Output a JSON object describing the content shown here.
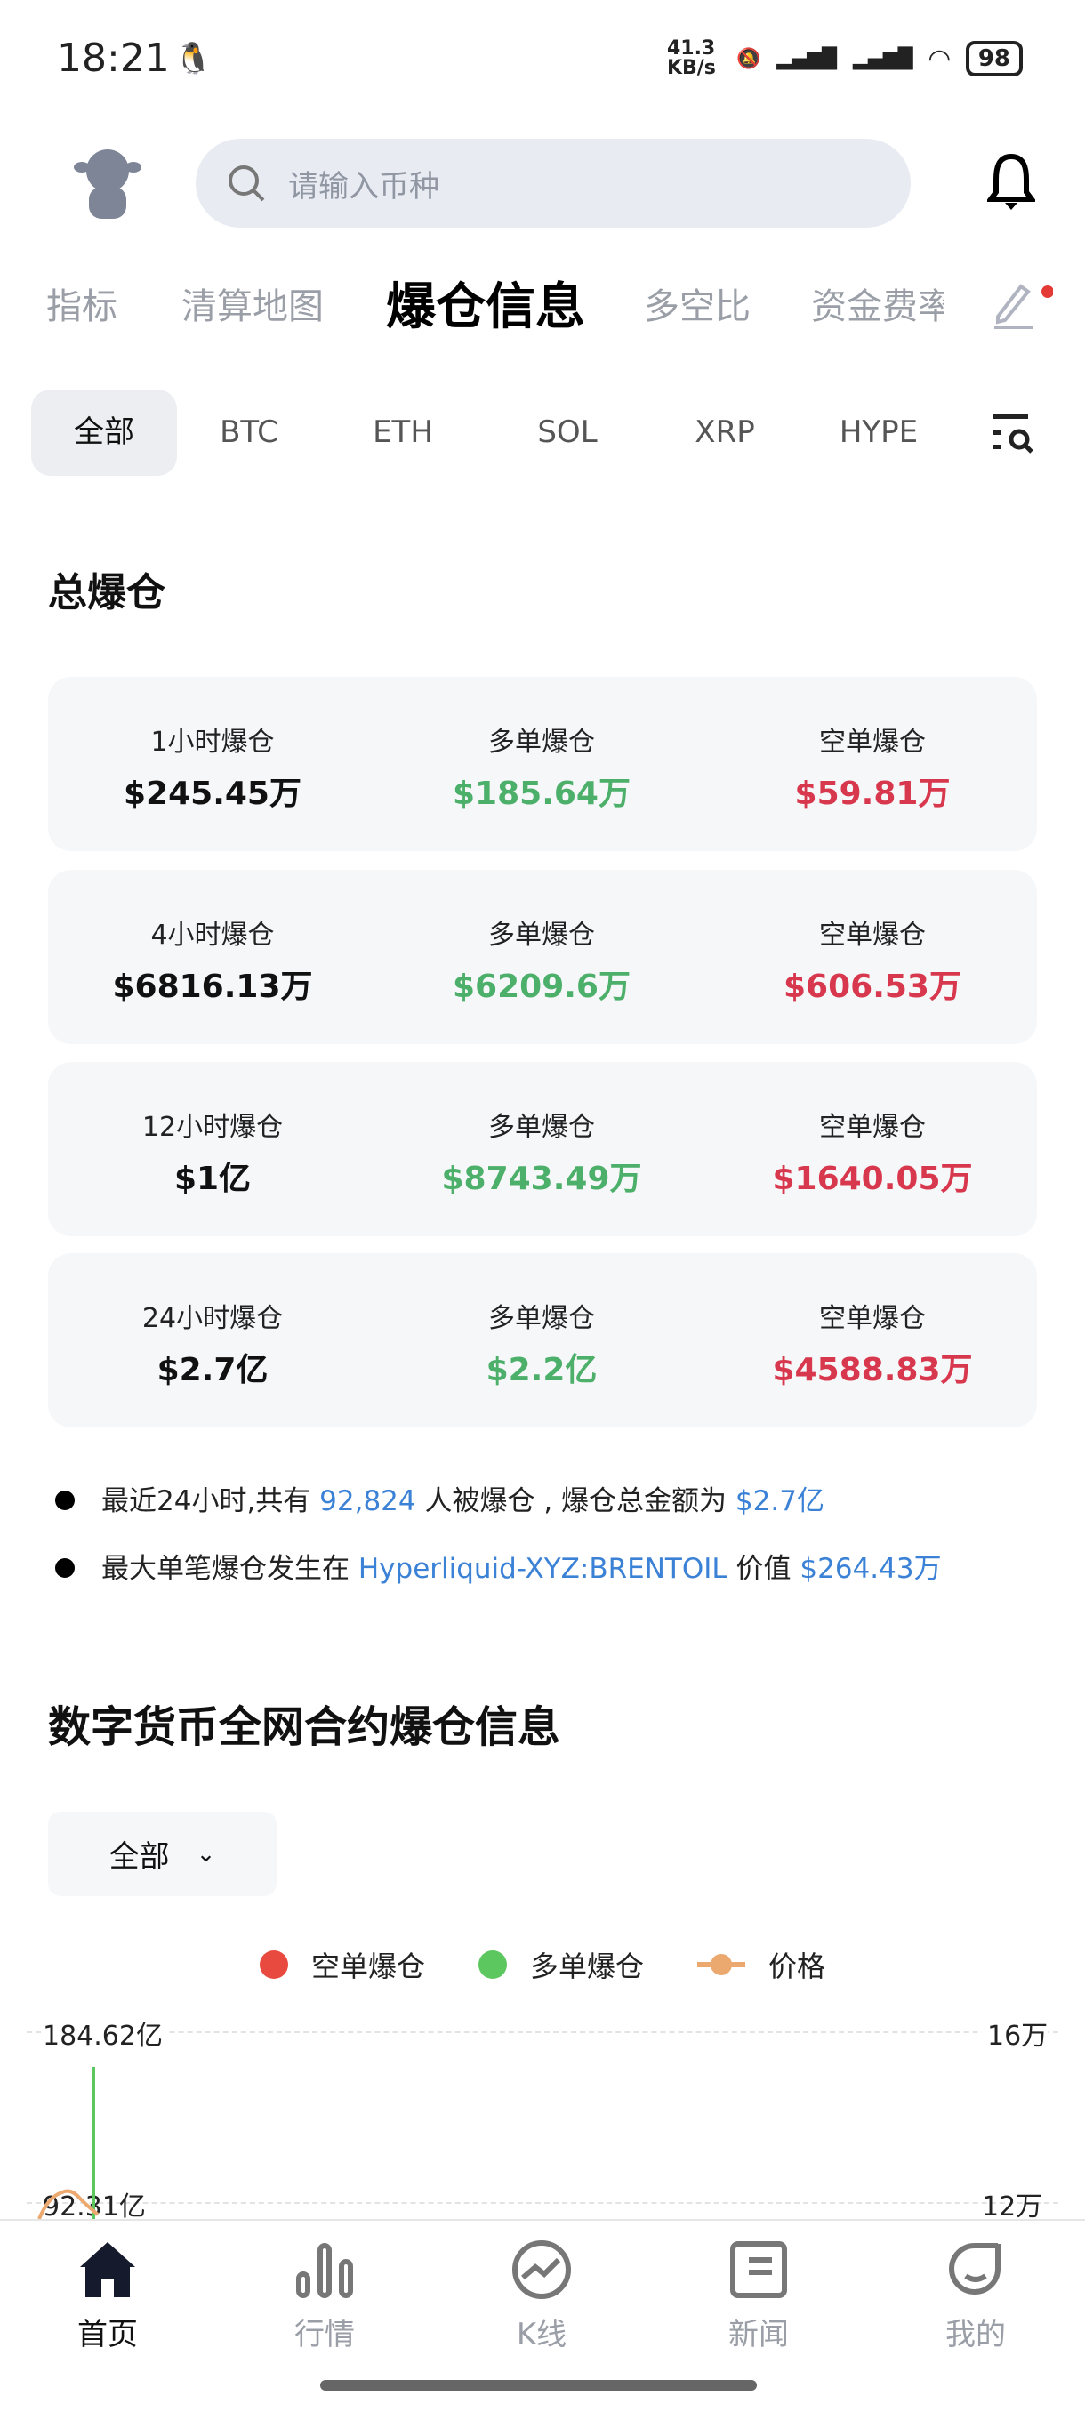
{
  "status_bar": {
    "time": "18:21",
    "net_speed": "41.3 KB/s",
    "battery": "98"
  },
  "header": {
    "search_placeholder": "请输入币种"
  },
  "tabs": [
    {
      "label": "指标"
    },
    {
      "label": "清算地图"
    },
    {
      "label": "爆仓信息",
      "active": true
    },
    {
      "label": "多空比"
    },
    {
      "label": "资金费率"
    }
  ],
  "coins": [
    {
      "label": "全部",
      "active": true
    },
    {
      "label": "BTC"
    },
    {
      "label": "ETH"
    },
    {
      "label": "SOL"
    },
    {
      "label": "XRP"
    },
    {
      "label": "HYPE"
    }
  ],
  "total": {
    "title": "总爆仓",
    "long_label": "多单爆仓",
    "short_label": "空单爆仓",
    "rows": [
      {
        "period": "1小时爆仓",
        "total": "$245.45万",
        "long": "$185.64万",
        "short": "$59.81万"
      },
      {
        "period": "4小时爆仓",
        "total": "$6816.13万",
        "long": "$6209.6万",
        "short": "$606.53万"
      },
      {
        "period": "12小时爆仓",
        "total": "$1亿",
        "long": "$8743.49万",
        "short": "$1640.05万"
      },
      {
        "period": "24小时爆仓",
        "total": "$2.7亿",
        "long": "$2.2亿",
        "short": "$4588.83万"
      }
    ]
  },
  "summary": {
    "line1_a": "最近24小时,共有 ",
    "line1_count": "92,824",
    "line1_b": " 人被爆仓 , 爆仓总金额为 ",
    "line1_amount": "$2.7亿",
    "line2_a": "最大单笔爆仓发生在 ",
    "line2_market": "Hyperliquid-XYZ:BRENTOIL",
    "line2_b": " 价值 ",
    "line2_amount": "$264.43万"
  },
  "chart_section": {
    "title": "数字货币全网合约爆仓信息",
    "filter": "全部"
  },
  "chart_data": {
    "type": "bar",
    "legend": [
      {
        "name": "空单爆仓",
        "color": "#e84a3f"
      },
      {
        "name": "多单爆仓",
        "color": "#5cc75f"
      },
      {
        "name": "价格",
        "color": "#eba86f"
      }
    ],
    "left_ticks": [
      "184.62亿",
      "92.31亿"
    ],
    "right_ticks": [
      "16万",
      "12万"
    ],
    "grid": true,
    "legend_position": "top"
  },
  "bottom_nav": [
    {
      "label": "首页",
      "active": true
    },
    {
      "label": "行情"
    },
    {
      "label": "K线"
    },
    {
      "label": "新闻"
    },
    {
      "label": "我的"
    }
  ]
}
